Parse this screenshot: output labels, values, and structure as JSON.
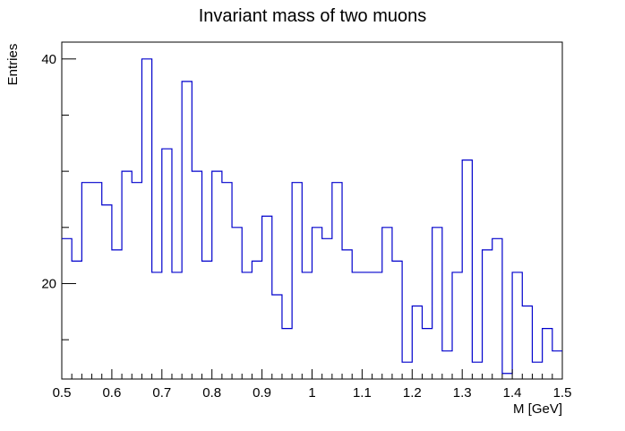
{
  "chart_data": {
    "type": "histogram",
    "title": "Invariant mass of two muons",
    "xlabel": "M [GeV]",
    "ylabel": "Entries",
    "xlim": [
      0.5,
      1.5
    ],
    "ylim": [
      11.5,
      41.5
    ],
    "bin_width": 0.02,
    "bin_low_edges": [
      0.5,
      0.52,
      0.54,
      0.56,
      0.58,
      0.6,
      0.62,
      0.64,
      0.66,
      0.68,
      0.7,
      0.72,
      0.74,
      0.76,
      0.78,
      0.8,
      0.82,
      0.84,
      0.86,
      0.88,
      0.9,
      0.92,
      0.94,
      0.96,
      0.98,
      1.0,
      1.02,
      1.04,
      1.06,
      1.08,
      1.1,
      1.12,
      1.14,
      1.16,
      1.18,
      1.2,
      1.22,
      1.24,
      1.26,
      1.28,
      1.3,
      1.32,
      1.34,
      1.36,
      1.38,
      1.4,
      1.42,
      1.44,
      1.46,
      1.48
    ],
    "values": [
      24,
      22,
      29,
      29,
      27,
      23,
      30,
      29,
      40,
      21,
      32,
      21,
      38,
      30,
      22,
      30,
      29,
      25,
      21,
      22,
      26,
      19,
      16,
      29,
      21,
      25,
      24,
      29,
      23,
      21,
      21,
      21,
      25,
      22,
      13,
      18,
      16,
      25,
      14,
      21,
      31,
      13,
      23,
      24,
      12,
      21,
      18,
      13,
      16,
      14
    ],
    "x_ticks": [
      0.5,
      0.6,
      0.7,
      0.8,
      0.9,
      1.0,
      1.1,
      1.2,
      1.3,
      1.4,
      1.5
    ],
    "x_tick_labels": [
      "0.5",
      "0.6",
      "0.7",
      "0.8",
      "0.9",
      "1",
      "1.1",
      "1.2",
      "1.3",
      "1.4",
      "1.5"
    ],
    "y_ticks": [
      20,
      40
    ],
    "y_tick_labels": [
      "20",
      "40"
    ],
    "y_minor_ticks": [
      15,
      25,
      30,
      35
    ],
    "grid": false,
    "line_color": "#0000cc"
  }
}
